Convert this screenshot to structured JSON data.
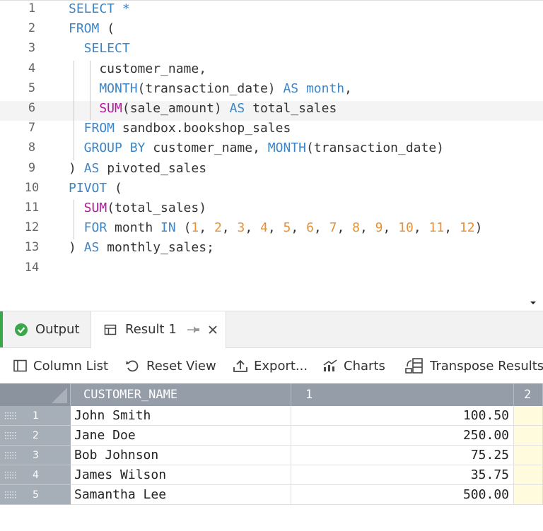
{
  "editor": {
    "lines": [
      {
        "number": 1,
        "tokens": [
          {
            "text": "SELECT *",
            "color": "#3d85c6"
          }
        ]
      },
      {
        "number": 2,
        "tokens": [
          {
            "text": "FROM",
            "color": "#3d85c6"
          },
          {
            "text": " (",
            "color": "#333333"
          }
        ]
      },
      {
        "number": 3,
        "tokens": [
          {
            "text": "  SELECT",
            "color": "#3d85c6"
          }
        ]
      },
      {
        "number": 4,
        "tokens": [
          {
            "text": "    customer_name,",
            "color": "#333333"
          }
        ]
      },
      {
        "number": 5,
        "tokens": [
          {
            "text": "    MONTH",
            "color": "#3d85c6"
          },
          {
            "text": "(transaction_date) ",
            "color": "#333333"
          },
          {
            "text": "AS month",
            "color": "#3d85c6"
          },
          {
            "text": ",",
            "color": "#333333"
          }
        ]
      },
      {
        "number": 6,
        "tokens": [
          {
            "text": "    SUM",
            "color": "#b5179e"
          },
          {
            "text": "(sale_amount) ",
            "color": "#333333"
          },
          {
            "text": "AS",
            "color": "#3d85c6"
          },
          {
            "text": " total_sales",
            "color": "#333333"
          }
        ]
      },
      {
        "number": 7,
        "tokens": [
          {
            "text": "  FROM",
            "color": "#3d85c6"
          },
          {
            "text": " sandbox.bookshop_sales",
            "color": "#333333"
          }
        ]
      },
      {
        "number": 8,
        "tokens": [
          {
            "text": "  GROUP BY",
            "color": "#3d85c6"
          },
          {
            "text": " customer_name, ",
            "color": "#333333"
          },
          {
            "text": "MONTH",
            "color": "#3d85c6"
          },
          {
            "text": "(transaction_date)",
            "color": "#333333"
          }
        ]
      },
      {
        "number": 9,
        "tokens": [
          {
            "text": ") ",
            "color": "#333333"
          },
          {
            "text": "AS",
            "color": "#3d85c6"
          },
          {
            "text": " pivoted_sales",
            "color": "#333333"
          }
        ]
      },
      {
        "number": 10,
        "tokens": [
          {
            "text": "PIVOT",
            "color": "#3d85c6"
          },
          {
            "text": " (",
            "color": "#333333"
          }
        ]
      },
      {
        "number": 11,
        "tokens": [
          {
            "text": "  SUM",
            "color": "#b5179e"
          },
          {
            "text": "(total_sales)",
            "color": "#333333"
          }
        ]
      },
      {
        "number": 12,
        "tokens": [
          {
            "text": "  FOR",
            "color": "#3d85c6"
          },
          {
            "text": " month ",
            "color": "#333333"
          },
          {
            "text": "IN",
            "color": "#3d85c6"
          },
          {
            "text": " (",
            "color": "#333333"
          },
          {
            "text": "1",
            "color": "#e69138"
          },
          {
            "text": ", ",
            "color": "#333333"
          },
          {
            "text": "2",
            "color": "#e69138"
          },
          {
            "text": ", ",
            "color": "#333333"
          },
          {
            "text": "3",
            "color": "#e69138"
          },
          {
            "text": ", ",
            "color": "#333333"
          },
          {
            "text": "4",
            "color": "#e69138"
          },
          {
            "text": ", ",
            "color": "#333333"
          },
          {
            "text": "5",
            "color": "#e69138"
          },
          {
            "text": ", ",
            "color": "#333333"
          },
          {
            "text": "6",
            "color": "#e69138"
          },
          {
            "text": ", ",
            "color": "#333333"
          },
          {
            "text": "7",
            "color": "#e69138"
          },
          {
            "text": ", ",
            "color": "#333333"
          },
          {
            "text": "8",
            "color": "#e69138"
          },
          {
            "text": ", ",
            "color": "#333333"
          },
          {
            "text": "9",
            "color": "#e69138"
          },
          {
            "text": ", ",
            "color": "#333333"
          },
          {
            "text": "10",
            "color": "#e69138"
          },
          {
            "text": ", ",
            "color": "#333333"
          },
          {
            "text": "11",
            "color": "#e69138"
          },
          {
            "text": ", ",
            "color": "#333333"
          },
          {
            "text": "12",
            "color": "#e69138"
          },
          {
            "text": ")",
            "color": "#333333"
          }
        ]
      },
      {
        "number": 13,
        "tokens": [
          {
            "text": ") ",
            "color": "#333333"
          },
          {
            "text": "AS",
            "color": "#3d85c6"
          },
          {
            "text": " monthly_sales;",
            "color": "#333333"
          }
        ]
      },
      {
        "number": 14,
        "tokens": []
      }
    ]
  },
  "tabs": [
    "Output",
    "Result 1"
  ],
  "toolbar": [
    "Column List",
    "Reset View",
    "Export...",
    "Charts",
    "Transpose Results"
  ],
  "table": {
    "columns": [
      "CUSTOMER_NAME",
      "1",
      "2"
    ],
    "rows": [
      {
        "number": 1,
        "cells": [
          "John Smith",
          "100.50"
        ]
      },
      {
        "number": 2,
        "cells": [
          "Jane Doe",
          "250.00"
        ]
      },
      {
        "number": 3,
        "cells": [
          "Bob Johnson",
          "75.25"
        ]
      },
      {
        "number": 4,
        "cells": [
          "James Wilson",
          "35.75"
        ]
      },
      {
        "number": 5,
        "cells": [
          "Samantha Lee",
          "500.00"
        ]
      }
    ]
  }
}
